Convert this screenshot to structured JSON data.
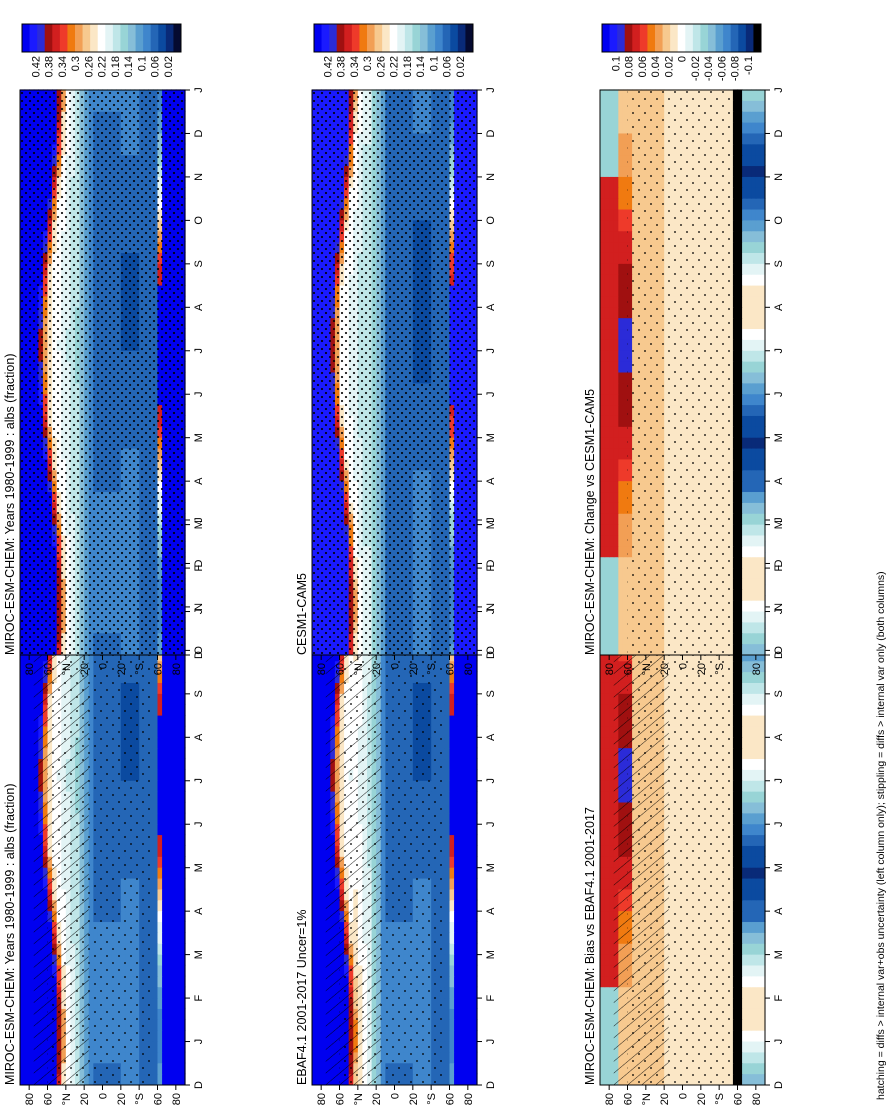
{
  "footer": "hatching = diffs > internal var+obs uncertainty (left column only); stippling = diffs > internal var only (both columns)",
  "colors": {
    "abs_scale": [
      "#0000f0",
      "#1a1aff",
      "#2b2bd8",
      "#a01010",
      "#d21f1f",
      "#ee3a2a",
      "#f07a10",
      "#f29f55",
      "#f7c98f",
      "#fbe7c6",
      "#ffffff",
      "#e3f4f5",
      "#bfe6e8",
      "#98d4d6",
      "#86bed8",
      "#5a9fd0",
      "#3f86cc",
      "#2466b6",
      "#0b4aa0",
      "#092a78",
      "#050a30"
    ],
    "diff_scale": [
      "#0000f0",
      "#1a1aff",
      "#2b2bd8",
      "#a01010",
      "#d21f1f",
      "#ee3a2a",
      "#f07a10",
      "#f29f55",
      "#f7c98f",
      "#fbe7c6",
      "#ffffff",
      "#e3f4f5",
      "#bfe6e8",
      "#98d4d6",
      "#86bed8",
      "#5a9fd0",
      "#3f86cc",
      "#2466b6",
      "#0b4aa0",
      "#092a78",
      "#000000"
    ]
  },
  "chart_data": [
    {
      "type": "heatmap",
      "id": "p1",
      "title": "MIROC-ESM-CHEM: Years 1980-1999 : albs (fraction)",
      "months": [
        "D",
        "J",
        "F",
        "M",
        "A",
        "M",
        "J",
        "J",
        "A",
        "S",
        "O",
        "N",
        "D",
        "J"
      ],
      "lat_ticks": [
        "80",
        "60",
        "°N",
        "20",
        "0",
        "20",
        "°S",
        "60",
        "80"
      ],
      "lat_values": [
        80,
        60,
        40,
        20,
        0,
        -20,
        -40,
        -60,
        -80
      ],
      "colorbar_ticks": [
        "0.42",
        "0.38",
        "0.34",
        "0.3",
        "0.26",
        "0.22",
        "0.18",
        "0.14",
        "0.1",
        "0.06",
        "0.02"
      ],
      "colorbar_values": [
        0.42,
        0.38,
        0.34,
        0.3,
        0.26,
        0.22,
        0.18,
        0.14,
        0.1,
        0.06,
        0.02
      ],
      "value_range": [
        0,
        0.44
      ],
      "hatching": true,
      "stippling": true
    },
    {
      "type": "heatmap",
      "id": "p2",
      "title": "MIROC-ESM-CHEM: Years 1980-1999 : albs (fraction)",
      "months": [
        "D",
        "J",
        "F",
        "M",
        "A",
        "M",
        "J",
        "J",
        "A",
        "S",
        "O",
        "N",
        "D",
        "J"
      ],
      "lat_ticks": [
        "80",
        "60",
        "°N",
        "20",
        "0",
        "20",
        "°S",
        "60",
        "80"
      ],
      "lat_values": [
        80,
        60,
        40,
        20,
        0,
        -20,
        -40,
        -60,
        -80
      ],
      "colorbar_ticks": [
        "0.42",
        "0.38",
        "0.34",
        "0.3",
        "0.26",
        "0.22",
        "0.18",
        "0.14",
        "0.1",
        "0.06",
        "0.02"
      ],
      "colorbar_values": [
        0.42,
        0.38,
        0.34,
        0.3,
        0.26,
        0.22,
        0.18,
        0.14,
        0.1,
        0.06,
        0.02
      ],
      "value_range": [
        0,
        0.44
      ],
      "hatching": false,
      "stippling": true
    },
    {
      "type": "heatmap",
      "id": "p3",
      "title": "EBAF4.1 2001-2017 Uncer=1%",
      "months": [
        "D",
        "J",
        "F",
        "M",
        "A",
        "M",
        "J",
        "J",
        "A",
        "S",
        "O",
        "N",
        "D",
        "J"
      ],
      "lat_ticks": [
        "80",
        "60",
        "°N",
        "20",
        "0",
        "20",
        "°S",
        "60",
        "80"
      ],
      "lat_values": [
        80,
        60,
        40,
        20,
        0,
        -20,
        -40,
        -60,
        -80
      ],
      "colorbar_ticks": [
        "0.42",
        "0.38",
        "0.34",
        "0.3",
        "0.26",
        "0.22",
        "0.18",
        "0.14",
        "0.1",
        "0.06",
        "0.02"
      ],
      "colorbar_values": [
        0.42,
        0.38,
        0.34,
        0.3,
        0.26,
        0.22,
        0.18,
        0.14,
        0.1,
        0.06,
        0.02
      ],
      "value_range": [
        0,
        0.44
      ],
      "hatching": true,
      "stippling": true
    },
    {
      "type": "heatmap",
      "id": "p4",
      "title": "CESM1-CAM5",
      "months": [
        "D",
        "J",
        "F",
        "M",
        "A",
        "M",
        "J",
        "J",
        "A",
        "S",
        "O",
        "N",
        "D",
        "J"
      ],
      "lat_ticks": [
        "80",
        "60",
        "°N",
        "20",
        "0",
        "20",
        "°S",
        "60",
        "80"
      ],
      "lat_values": [
        80,
        60,
        40,
        20,
        0,
        -20,
        -40,
        -60,
        -80
      ],
      "colorbar_ticks": [
        "0.42",
        "0.38",
        "0.34",
        "0.3",
        "0.26",
        "0.22",
        "0.18",
        "0.14",
        "0.1",
        "0.06",
        "0.02"
      ],
      "colorbar_values": [
        0.42,
        0.38,
        0.34,
        0.3,
        0.26,
        0.22,
        0.18,
        0.14,
        0.1,
        0.06,
        0.02
      ],
      "value_range": [
        0,
        0.44
      ],
      "hatching": false,
      "stippling": true
    },
    {
      "type": "heatmap",
      "id": "p5",
      "title": "MIROC-ESM-CHEM: Bias vs EBAF4.1 2001-2017",
      "months": [
        "D",
        "J",
        "F",
        "M",
        "A",
        "M",
        "J",
        "J",
        "A",
        "S",
        "O",
        "N",
        "D",
        "J"
      ],
      "lat_ticks": [
        "80",
        "60",
        "°N",
        "20",
        "0",
        "20",
        "°S",
        "60",
        "80"
      ],
      "lat_values": [
        80,
        60,
        40,
        20,
        0,
        -20,
        -40,
        -60,
        -80
      ],
      "colorbar_ticks": [
        "0.1",
        "0.08",
        "0.06",
        "0.04",
        "0.02",
        "0",
        "-0.02",
        "-0.04",
        "-0.06",
        "-0.08",
        "-0.1"
      ],
      "colorbar_values": [
        0.1,
        0.08,
        0.06,
        0.04,
        0.02,
        0,
        -0.02,
        -0.04,
        -0.06,
        -0.08,
        -0.1
      ],
      "value_range": [
        -0.11,
        0.11
      ],
      "hatching": true,
      "stippling": true
    },
    {
      "type": "heatmap",
      "id": "p6",
      "title": "MIROC-ESM-CHEM: Change vs CESM1-CAM5",
      "months": [
        "D",
        "J",
        "F",
        "M",
        "A",
        "M",
        "J",
        "J",
        "A",
        "S",
        "O",
        "N",
        "D",
        "J"
      ],
      "lat_ticks": [
        "80",
        "60",
        "°N",
        "20",
        "0",
        "20",
        "°S",
        "60",
        "80"
      ],
      "lat_values": [
        80,
        60,
        40,
        20,
        0,
        -20,
        -40,
        -60,
        -80
      ],
      "colorbar_ticks": [
        "0.1",
        "0.08",
        "0.06",
        "0.04",
        "0.02",
        "0",
        "-0.02",
        "-0.04",
        "-0.06",
        "-0.08",
        "-0.1"
      ],
      "colorbar_values": [
        0.1,
        0.08,
        0.06,
        0.04,
        0.02,
        0,
        -0.02,
        -0.04,
        -0.06,
        -0.08,
        -0.1
      ],
      "value_range": [
        -0.11,
        0.11
      ],
      "hatching": false,
      "stippling": true
    }
  ]
}
